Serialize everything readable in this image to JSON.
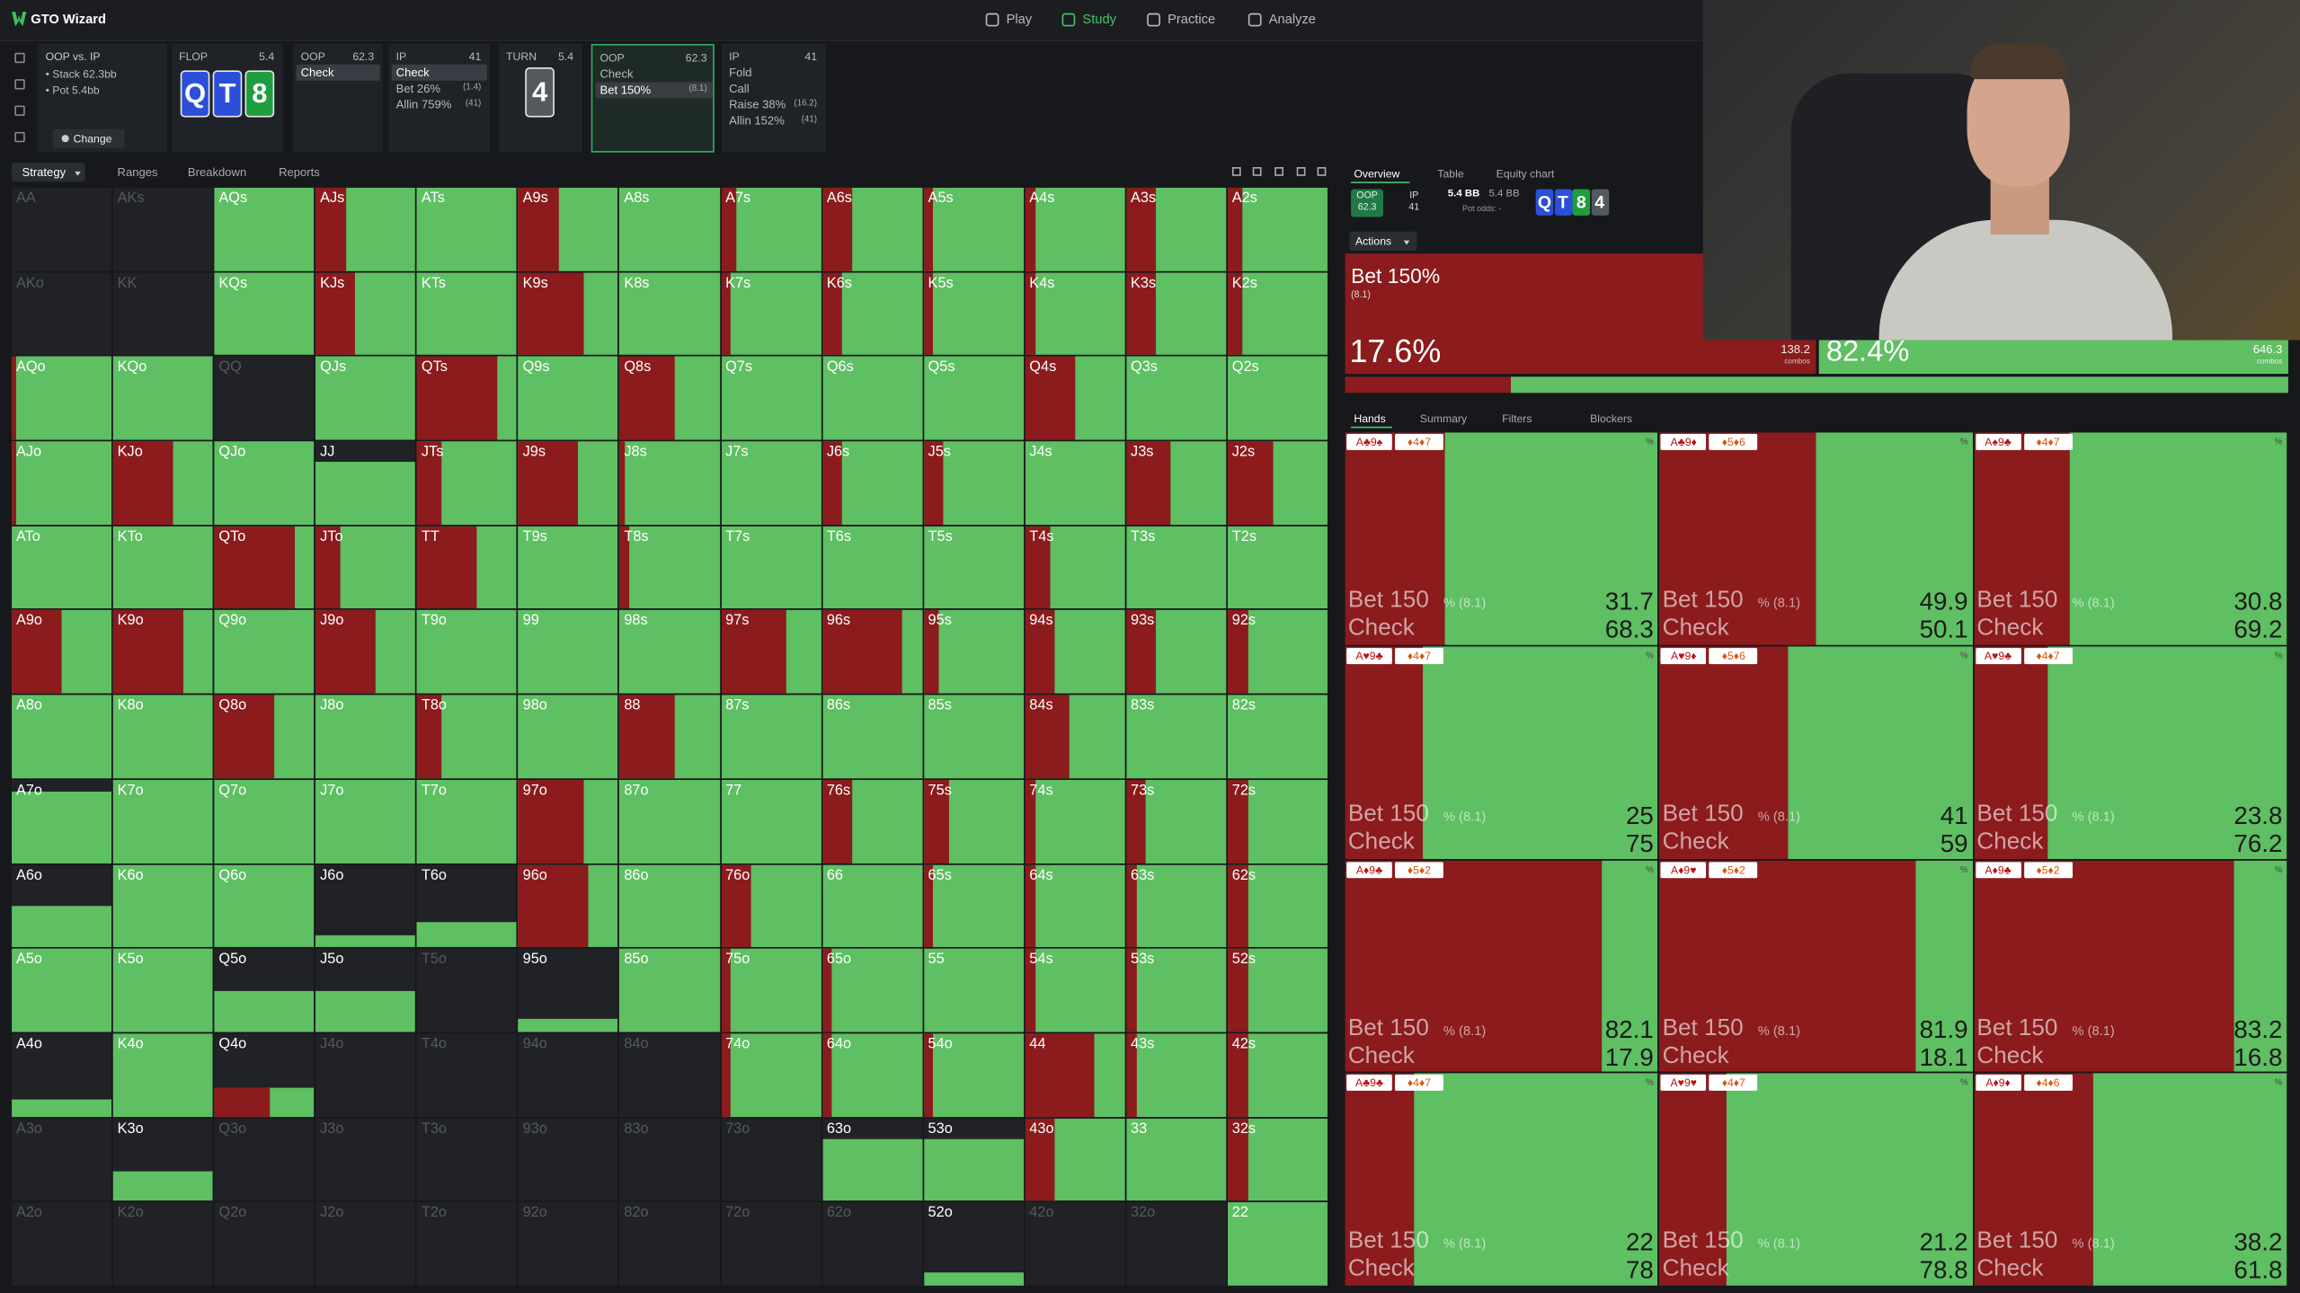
{
  "app": {
    "name": "GTO Wizard",
    "nav": [
      "Play",
      "Study",
      "Practice",
      "Analyze"
    ],
    "nav_active": 1
  },
  "spot": {
    "title": "OOP vs. IP",
    "stack": "• Stack 62.3bb",
    "pot": "• Pot 5.4bb",
    "button": "Change"
  },
  "nodes": [
    {
      "label": "FLOP",
      "value": "5.4",
      "cards": [
        {
          "rank": "Q",
          "color": "#2b4fd8"
        },
        {
          "rank": "T",
          "color": "#2b4fd8"
        },
        {
          "rank": "8",
          "color": "#1e9e3e"
        }
      ]
    },
    {
      "label": "OOP",
      "value": "62.3",
      "actions": [
        {
          "name": "Check"
        }
      ],
      "active": 0
    },
    {
      "label": "IP",
      "value": "41",
      "actions": [
        {
          "name": "Check"
        },
        {
          "name": "Bet 26%",
          "size": "(1.4)"
        },
        {
          "name": "Allin 759%",
          "size": "(41)"
        }
      ],
      "active": 0
    },
    {
      "label": "TURN",
      "value": "5.4",
      "cards": [
        {
          "rank": "4",
          "color": "#55585e"
        }
      ]
    },
    {
      "label": "OOP",
      "value": "62.3",
      "actions": [
        {
          "name": "Check"
        },
        {
          "name": "Bet 150%",
          "size": "(8.1)"
        }
      ],
      "active": 1,
      "selected": true
    },
    {
      "label": "IP",
      "value": "41",
      "actions": [
        {
          "name": "Fold"
        },
        {
          "name": "Call"
        },
        {
          "name": "Raise 38%",
          "size": "(16.2)"
        },
        {
          "name": "Allin 152%",
          "size": "(41)"
        }
      ]
    }
  ],
  "strategy_tabs": [
    "Strategy",
    "Ranges",
    "Breakdown",
    "Reports"
  ],
  "matrix": {
    "bet_color": "#8b1b1d",
    "check_color": "#5fbf63",
    "hands": [
      [
        "AA",
        "AKs",
        "AQs",
        "AJs",
        "ATs",
        "A9s",
        "A8s",
        "A7s",
        "A6s",
        "A5s",
        "A4s",
        "A3s",
        "A2s"
      ],
      [
        "AKo",
        "KK",
        "KQs",
        "KJs",
        "KTs",
        "K9s",
        "K8s",
        "K7s",
        "K6s",
        "K5s",
        "K4s",
        "K3s",
        "K2s"
      ],
      [
        "AQo",
        "KQo",
        "QQ",
        "QJs",
        "QTs",
        "Q9s",
        "Q8s",
        "Q7s",
        "Q6s",
        "Q5s",
        "Q4s",
        "Q3s",
        "Q2s"
      ],
      [
        "AJo",
        "KJo",
        "QJo",
        "JJ",
        "JTs",
        "J9s",
        "J8s",
        "J7s",
        "J6s",
        "J5s",
        "J4s",
        "J3s",
        "J2s"
      ],
      [
        "ATo",
        "KTo",
        "QTo",
        "JTo",
        "TT",
        "T9s",
        "T8s",
        "T7s",
        "T6s",
        "T5s",
        "T4s",
        "T3s",
        "T2s"
      ],
      [
        "A9o",
        "K9o",
        "Q9o",
        "J9o",
        "T9o",
        "99",
        "98s",
        "97s",
        "96s",
        "95s",
        "94s",
        "93s",
        "92s"
      ],
      [
        "A8o",
        "K8o",
        "Q8o",
        "J8o",
        "T8o",
        "98o",
        "88",
        "87s",
        "86s",
        "85s",
        "84s",
        "83s",
        "82s"
      ],
      [
        "A7o",
        "K7o",
        "Q7o",
        "J7o",
        "T7o",
        "97o",
        "87o",
        "77",
        "76s",
        "75s",
        "74s",
        "73s",
        "72s"
      ],
      [
        "A6o",
        "K6o",
        "Q6o",
        "J6o",
        "T6o",
        "96o",
        "86o",
        "76o",
        "66",
        "65s",
        "64s",
        "63s",
        "62s"
      ],
      [
        "A5o",
        "K5o",
        "Q5o",
        "J5o",
        "T5o",
        "95o",
        "85o",
        "75o",
        "65o",
        "55",
        "54s",
        "53s",
        "52s"
      ],
      [
        "A4o",
        "K4o",
        "Q4o",
        "J4o",
        "T4o",
        "94o",
        "84o",
        "74o",
        "64o",
        "54o",
        "44",
        "43s",
        "42s"
      ],
      [
        "A3o",
        "K3o",
        "Q3o",
        "J3o",
        "T3o",
        "93o",
        "83o",
        "73o",
        "63o",
        "53o",
        "43o",
        "33",
        "32s"
      ],
      [
        "A2o",
        "K2o",
        "Q2o",
        "J2o",
        "T2o",
        "92o",
        "82o",
        "72o",
        "62o",
        "52o",
        "42o",
        "32o",
        "22"
      ]
    ],
    "bet": [
      [
        0,
        0,
        0,
        30,
        0,
        40,
        0,
        15,
        30,
        10,
        10,
        30,
        15
      ],
      [
        0,
        0,
        0,
        40,
        0,
        65,
        0,
        10,
        20,
        10,
        10,
        30,
        15
      ],
      [
        5,
        0,
        0,
        0,
        80,
        0,
        55,
        0,
        0,
        0,
        50,
        0,
        0
      ],
      [
        5,
        60,
        0,
        0,
        25,
        60,
        5,
        0,
        20,
        20,
        0,
        45,
        45
      ],
      [
        0,
        0,
        80,
        25,
        60,
        0,
        10,
        0,
        0,
        0,
        25,
        0,
        0
      ],
      [
        50,
        70,
        0,
        60,
        0,
        0,
        0,
        65,
        80,
        15,
        30,
        30,
        20
      ],
      [
        0,
        0,
        60,
        0,
        25,
        0,
        55,
        0,
        0,
        0,
        45,
        0,
        0
      ],
      [
        0,
        0,
        0,
        0,
        0,
        65,
        0,
        0,
        30,
        25,
        10,
        20,
        20
      ],
      [
        0,
        0,
        0,
        0,
        0,
        70,
        0,
        30,
        0,
        10,
        10,
        10,
        20
      ],
      [
        0,
        0,
        0,
        0,
        0,
        0,
        0,
        10,
        10,
        0,
        10,
        10,
        20
      ],
      [
        0,
        0,
        55,
        0,
        0,
        0,
        0,
        10,
        10,
        10,
        70,
        10,
        20
      ],
      [
        0,
        0,
        0,
        0,
        0,
        0,
        0,
        0,
        0,
        0,
        30,
        0,
        20
      ],
      [
        0,
        0,
        0,
        0,
        0,
        0,
        0,
        0,
        0,
        0,
        0,
        0,
        0
      ]
    ],
    "weight": [
      [
        0,
        0,
        100,
        100,
        100,
        100,
        100,
        100,
        100,
        100,
        100,
        100,
        100
      ],
      [
        0,
        0,
        100,
        100,
        100,
        100,
        100,
        100,
        100,
        100,
        100,
        100,
        100
      ],
      [
        100,
        100,
        0,
        100,
        100,
        100,
        100,
        100,
        100,
        100,
        100,
        100,
        100
      ],
      [
        100,
        100,
        100,
        75,
        100,
        100,
        100,
        100,
        100,
        100,
        100,
        100,
        100
      ],
      [
        100,
        100,
        100,
        100,
        100,
        100,
        100,
        100,
        100,
        100,
        100,
        100,
        100
      ],
      [
        100,
        100,
        100,
        100,
        100,
        100,
        100,
        100,
        100,
        100,
        100,
        100,
        100
      ],
      [
        100,
        100,
        100,
        100,
        100,
        100,
        100,
        100,
        100,
        100,
        100,
        100,
        100
      ],
      [
        85,
        100,
        100,
        100,
        100,
        100,
        100,
        100,
        100,
        100,
        100,
        100,
        100
      ],
      [
        50,
        100,
        100,
        15,
        30,
        100,
        100,
        100,
        100,
        100,
        100,
        100,
        100
      ],
      [
        100,
        100,
        50,
        50,
        0,
        15,
        100,
        100,
        100,
        100,
        100,
        100,
        100
      ],
      [
        20,
        100,
        35,
        0,
        0,
        0,
        0,
        100,
        100,
        100,
        100,
        100,
        100
      ],
      [
        0,
        35,
        0,
        0,
        0,
        0,
        0,
        0,
        75,
        75,
        100,
        100,
        100
      ],
      [
        0,
        0,
        0,
        0,
        0,
        0,
        0,
        0,
        0,
        15,
        0,
        0,
        100
      ]
    ]
  },
  "overview": {
    "tabs": [
      "Overview",
      "Table",
      "Equity chart"
    ],
    "oop": {
      "label": "OOP",
      "value": "62.3"
    },
    "ip": {
      "label": "IP",
      "value": "41"
    },
    "stack_bb": "5.4 BB",
    "pot_bb": "5.4 BB",
    "pot_odds": "Pot odds: -",
    "actions_menu": "Actions",
    "bet": {
      "label": "Bet 150%",
      "size": "(8.1)",
      "pct": 17.6,
      "pct_label": "17.6%",
      "combos": "138.2",
      "combos_unit": "combos"
    },
    "check": {
      "pct": 82.4,
      "pct_label": "82.4%",
      "combos": "646.3"
    }
  },
  "hands_panel": {
    "tabs": [
      "Hands",
      "Summary",
      "Filters",
      "Blockers"
    ],
    "bet_label": "Bet 150",
    "bet_suffix": "% (8.1)",
    "check_label": "Check",
    "corner": "%",
    "items": [
      {
        "cards": "A♣9♠",
        "blockers": "♦4♦7",
        "bet": 31.7,
        "check": 68.3
      },
      {
        "cards": "A♣9♦",
        "blockers": "♦5♦6",
        "bet": 49.9,
        "check": 50.1
      },
      {
        "cards": "A♠9♣",
        "blockers": "♦4♦7",
        "bet": 30.8,
        "check": 69.2
      },
      {
        "cards": "A♥9♣",
        "blockers": "♦4♦7",
        "bet": 25,
        "check": 75
      },
      {
        "cards": "A♥9♦",
        "blockers": "♦5♦6",
        "bet": 41,
        "check": 59
      },
      {
        "cards": "A♥9♣",
        "blockers": "♦4♦7",
        "bet": 23.8,
        "check": 76.2
      },
      {
        "cards": "A♦9♣",
        "blockers": "♦5♦2",
        "bet": 82.1,
        "check": 17.9
      },
      {
        "cards": "A♦9♥",
        "blockers": "♦5♦2",
        "bet": 81.9,
        "check": 18.1
      },
      {
        "cards": "A♦9♣",
        "blockers": "♦5♦2",
        "bet": 83.2,
        "check": 16.8
      },
      {
        "cards": "A♣9♣",
        "blockers": "♦4♦7",
        "bet": 22,
        "check": 78
      },
      {
        "cards": "A♥9♥",
        "blockers": "♦4♦7",
        "bet": 21.2,
        "check": 78.8
      },
      {
        "cards": "A♦9♦",
        "blockers": "♦4♦6",
        "bet": 38.2,
        "check": 61.8
      }
    ]
  }
}
